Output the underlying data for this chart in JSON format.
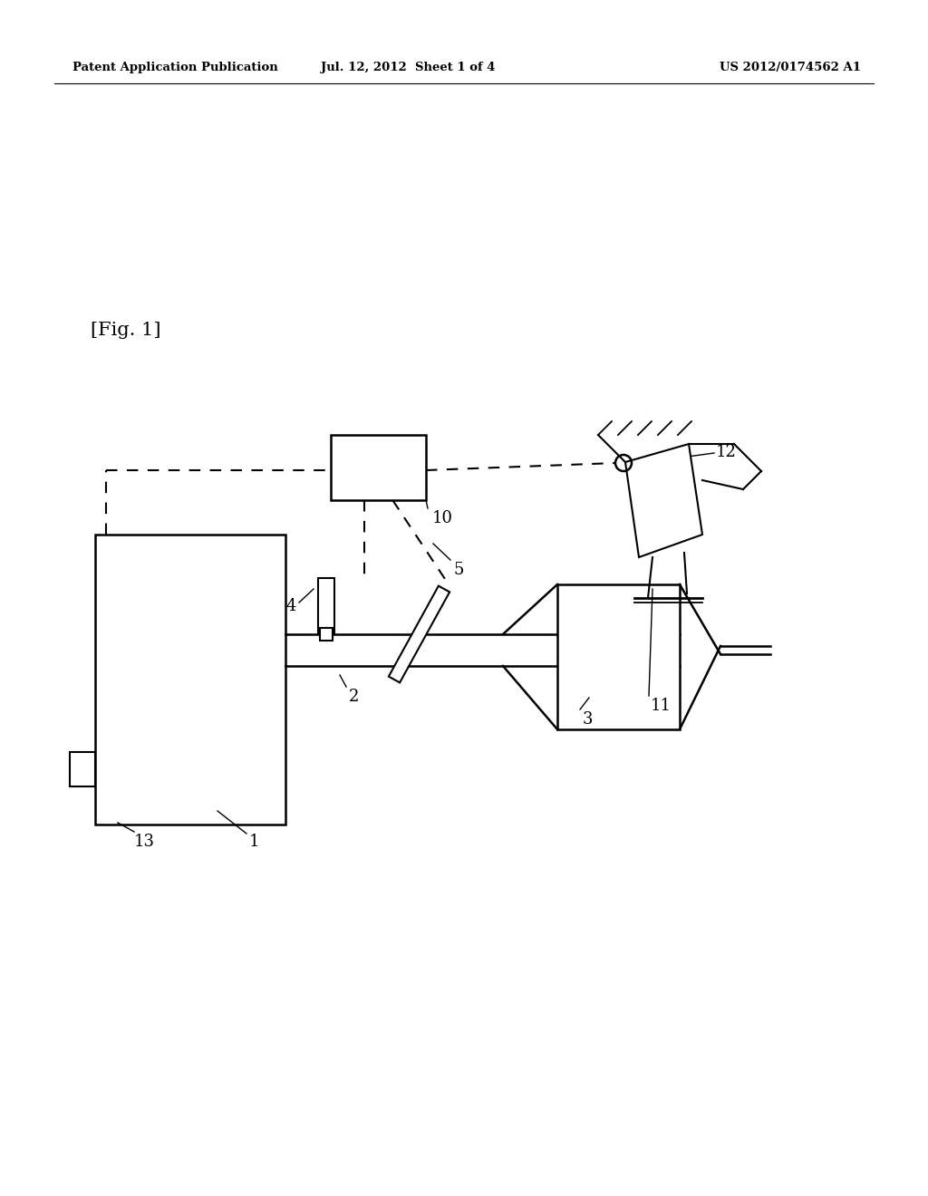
{
  "bg_color": "#ffffff",
  "header_left": "Patent Application Publication",
  "header_mid": "Jul. 12, 2012  Sheet 1 of 4",
  "header_right": "US 2012/0174562 A1",
  "fig_label": "[Fig. 1]",
  "line_color": "#000000"
}
